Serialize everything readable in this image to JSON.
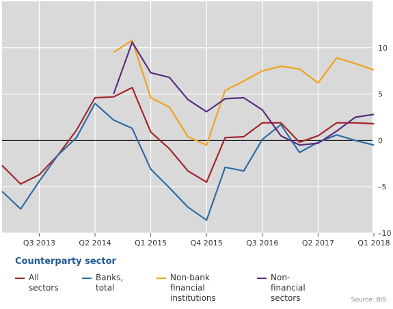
{
  "chart_data": {
    "type": "line",
    "title": "",
    "xlabel": "",
    "ylabel": "",
    "ylim": [
      -10,
      15
    ],
    "yticks": [
      -10,
      -5,
      0,
      5,
      10
    ],
    "y_axis_side": "right",
    "grid": true,
    "zero_line": true,
    "x": [
      "Q1 2013",
      "Q2 2013",
      "Q3 2013",
      "Q4 2013",
      "Q1 2014",
      "Q2 2014",
      "Q3 2014",
      "Q4 2014",
      "Q1 2015",
      "Q2 2015",
      "Q3 2015",
      "Q4 2015",
      "Q1 2016",
      "Q2 2016",
      "Q3 2016",
      "Q4 2016",
      "Q1 2017",
      "Q2 2017",
      "Q3 2017",
      "Q4 2017",
      "Q1 2018",
      "Q2 2018"
    ],
    "x_tick_labels": [
      {
        "x": "Q3 2013",
        "label": "Q3 2013"
      },
      {
        "x": "Q2 2014",
        "label": "Q2 2014"
      },
      {
        "x": "Q1 2015",
        "label": "Q1 2015"
      },
      {
        "x": "Q4 2015",
        "label": "Q4 2015"
      },
      {
        "x": "Q3 2016",
        "label": "Q3 2016"
      },
      {
        "x": "Q2 2017",
        "label": "Q2 2017"
      },
      {
        "x": "Q1 2018",
        "label": "Q1 2018"
      }
    ],
    "series": [
      {
        "name": "All sectors",
        "color": "#a3262a",
        "values": [
          -2.7,
          -4.7,
          -3.7,
          -1.6,
          1.1,
          4.6,
          4.7,
          5.7,
          0.9,
          -0.9,
          -3.3,
          -4.5,
          0.3,
          0.4,
          1.9,
          1.9,
          -0.2,
          0.5,
          1.9,
          1.9,
          1.8,
          null
        ]
      },
      {
        "name": "Banks, total",
        "color": "#2e6ca3",
        "values": [
          -5.5,
          -7.4,
          -4.4,
          -1.6,
          0.3,
          4.0,
          2.2,
          1.3,
          -3.1,
          -5.1,
          -7.2,
          -8.6,
          -2.9,
          -3.3,
          0.1,
          1.7,
          -1.3,
          -0.2,
          0.6,
          0.0,
          -0.5,
          null
        ]
      },
      {
        "name": "Non-bank financial\ninstitutions",
        "color": "#f0a31f",
        "values": [
          null,
          null,
          null,
          null,
          null,
          null,
          9.5,
          10.8,
          4.6,
          3.6,
          0.4,
          -0.5,
          5.4,
          6.4,
          7.5,
          8.0,
          7.7,
          6.2,
          8.9,
          8.3,
          7.6,
          null
        ]
      },
      {
        "name": "Non-financial sectors",
        "color": "#5b2d7e",
        "values": [
          null,
          null,
          null,
          null,
          null,
          null,
          5.0,
          10.6,
          7.3,
          6.8,
          4.4,
          3.1,
          4.5,
          4.6,
          3.3,
          0.5,
          -0.5,
          -0.3,
          1.0,
          2.5,
          2.8,
          null
        ]
      }
    ]
  },
  "legend": {
    "title": "Counterparty sector",
    "items": [
      {
        "label": "All sectors",
        "color": "#a3262a"
      },
      {
        "label": "Banks, total",
        "color": "#2e6ca3"
      },
      {
        "label": "Non-bank financial\ninstitutions",
        "color": "#f0a31f"
      },
      {
        "label": "Non-financial sectors",
        "color": "#5b2d7e"
      }
    ]
  },
  "source": "Source: BIS",
  "colors": {
    "plot_background": "#d9d9d9",
    "grid": "#ffffff",
    "zero_line": "#000000"
  }
}
